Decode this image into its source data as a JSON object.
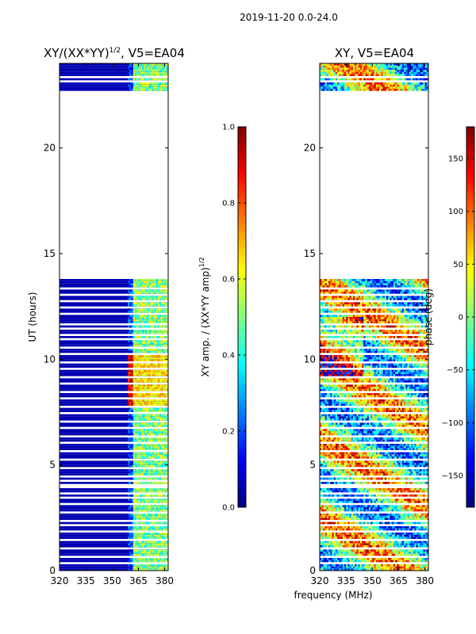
{
  "figure": {
    "suptitle": "2019-11-20 0.0-24.0",
    "xlabel": "frequency (MHz)"
  },
  "colors": {
    "jet": [
      "#00007f",
      "#0000ff",
      "#007fff",
      "#00ffff",
      "#7fff7f",
      "#ffff00",
      "#ff7f00",
      "#ff0000",
      "#7f0000"
    ],
    "empty": "#ffffff",
    "axis": "#000000"
  },
  "chart_data": [
    {
      "type": "heatmap",
      "title_main": "XY/(XX*YY)",
      "title_sup": "1/2",
      "title_tail": ", V5=EA04",
      "ylabel": "UT (hours)",
      "x_ticks": [
        "320",
        "335",
        "350",
        "365",
        "380"
      ],
      "x_tick_values": [
        320,
        335,
        350,
        365,
        380
      ],
      "y_ticks": [
        "0",
        "5",
        "10",
        "15",
        "20"
      ],
      "y_tick_values": [
        0,
        5,
        10,
        15,
        20
      ],
      "xlim": [
        320,
        382
      ],
      "ylim": [
        0,
        24
      ],
      "colorbar": {
        "label_main": "XY amp. / (XX*YY amp)",
        "label_sup": "1/2",
        "range": [
          0.0,
          1.0
        ],
        "ticks": [
          "0.0",
          "0.2",
          "0.4",
          "0.6",
          "0.8",
          "1.0"
        ],
        "tick_values": [
          0.0,
          0.2,
          0.4,
          0.6,
          0.8,
          1.0
        ]
      },
      "data_blocks_hours": [
        [
          0,
          13.8
        ],
        [
          22.7,
          24
        ]
      ],
      "empty_band_hours": [
        13.8,
        22.7
      ],
      "flagged_rows_hours": [
        0.3,
        0.6,
        1.0,
        1.4,
        1.8,
        2.1,
        2.3,
        2.7,
        3.1,
        3.4,
        3.6,
        3.9,
        4.0,
        4.2,
        4.4,
        4.8,
        5.2,
        5.6,
        6.0,
        6.3,
        6.7,
        7.0,
        7.4,
        7.7,
        8.1,
        8.4,
        8.8,
        9.1,
        9.5,
        9.8,
        10.2,
        10.5,
        10.9,
        11.1,
        11.4,
        11.6,
        12.1,
        12.4,
        12.7,
        13.0,
        13.3,
        23.1,
        23.3
      ],
      "bright_channels_mhz": [
        363,
        366,
        368,
        371,
        373,
        376,
        378,
        381
      ],
      "peak_region": {
        "freq_mhz": [
          359,
          382
        ],
        "hours": [
          7.8,
          10.1
        ],
        "value": 0.95
      },
      "background_value": 0.05
    },
    {
      "type": "heatmap",
      "title": "XY, V5=EA04",
      "x_ticks": [
        "320",
        "335",
        "350",
        "365",
        "380"
      ],
      "x_tick_values": [
        320,
        335,
        350,
        365,
        380
      ],
      "y_ticks": [
        "0",
        "5",
        "10",
        "15",
        "20"
      ],
      "y_tick_values": [
        0,
        5,
        10,
        15,
        20
      ],
      "xlim": [
        320,
        382
      ],
      "ylim": [
        0,
        24
      ],
      "colorbar": {
        "label": "phase (deg)",
        "range": [
          -180,
          180
        ],
        "ticks": [
          "−150",
          "−100",
          "−50",
          "0",
          "50",
          "100",
          "150"
        ],
        "tick_values": [
          -150,
          -100,
          -50,
          0,
          50,
          100,
          150
        ]
      },
      "data_blocks_hours": [
        [
          0,
          13.8
        ],
        [
          22.7,
          24
        ]
      ],
      "empty_band_hours": [
        13.8,
        22.7
      ],
      "flagged_rows_hours": [
        0.3,
        0.6,
        1.0,
        1.4,
        1.8,
        2.1,
        2.3,
        2.7,
        3.1,
        3.4,
        3.6,
        3.9,
        4.0,
        4.2,
        4.4,
        4.8,
        5.2,
        5.6,
        6.0,
        6.3,
        6.7,
        7.0,
        7.4,
        7.7,
        8.1,
        8.4,
        8.8,
        9.1,
        9.5,
        9.8,
        10.2,
        10.5,
        10.9,
        11.1,
        11.4,
        11.6,
        12.1,
        12.4,
        12.7,
        13.0,
        13.3,
        23.1,
        23.3
      ]
    }
  ]
}
